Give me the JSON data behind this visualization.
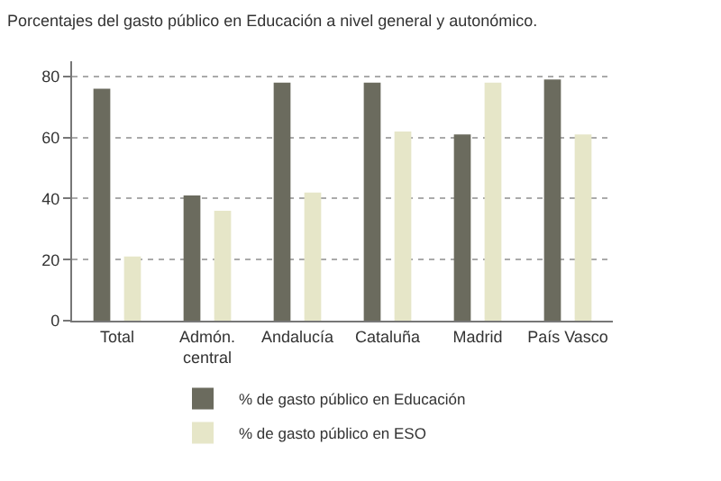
{
  "chart_data": {
    "type": "bar",
    "title": "Porcentajes del gasto público en Educación a nivel general y autonómico.",
    "categories": [
      "Total",
      "Admón.\ncentral",
      "Andalucía",
      "Cataluña",
      "Madrid",
      "País Vasco"
    ],
    "series": [
      {
        "name": "% de gasto público en Educación",
        "color": "#6b6b5e",
        "values": [
          76,
          41,
          78,
          78,
          61,
          79
        ]
      },
      {
        "name": "% de gasto público en ESO",
        "color": "#e6e6c8",
        "values": [
          21,
          36,
          42,
          62,
          78,
          61
        ]
      }
    ],
    "ylim": [
      0,
      85
    ],
    "yticks": [
      0,
      20,
      40,
      60,
      80
    ],
    "grid": "y",
    "legend": "bottom"
  }
}
